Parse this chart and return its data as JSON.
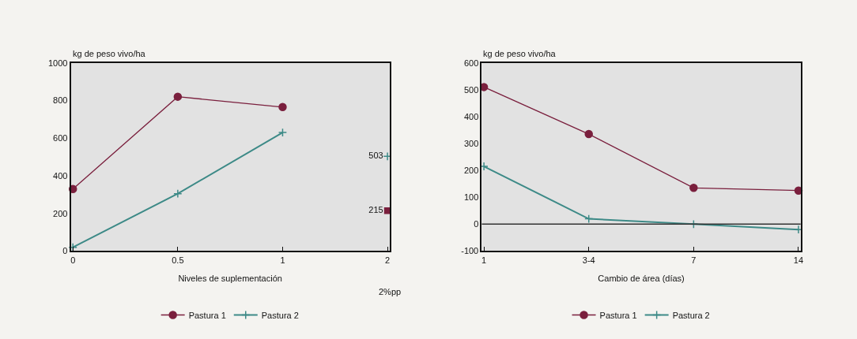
{
  "chart_data": [
    {
      "type": "line",
      "ylabel": "kg de peso vivo/ha",
      "xlabel": "Niveles de suplementación",
      "categories": [
        "0",
        "0.5",
        "1",
        "2"
      ],
      "ylim": [
        0,
        1000
      ],
      "yticks": [
        0,
        200,
        400,
        600,
        800,
        1000
      ],
      "grid": false,
      "legend": "bottom",
      "series": [
        {
          "name": "Pastura 1",
          "color": "#7a1f3d",
          "marker": "circle",
          "values": [
            330,
            820,
            765,
            null
          ]
        },
        {
          "name": "Pastura 2",
          "color": "#3d8a87",
          "marker": "cross",
          "values": [
            20,
            305,
            630,
            null
          ]
        },
        {
          "type": "scatter",
          "color": "#7a1f3d",
          "marker": "square",
          "values": [
            null,
            null,
            null,
            215
          ],
          "value_labels": [
            null,
            null,
            null,
            "215"
          ]
        },
        {
          "type": "scatter",
          "color": "#3d8a87",
          "marker": "cross",
          "values": [
            null,
            null,
            null,
            503
          ],
          "value_labels": [
            null,
            null,
            null,
            "503"
          ]
        }
      ],
      "annotations": [
        "2%pp"
      ]
    },
    {
      "type": "line",
      "ylabel": "kg de peso vivo/ha",
      "xlabel": "Cambio de área (días)",
      "categories": [
        "1",
        "3-4",
        "7",
        "14"
      ],
      "ylim": [
        -100,
        600
      ],
      "yticks": [
        -100,
        0,
        100,
        200,
        300,
        400,
        500,
        600
      ],
      "grid": false,
      "legend": "bottom",
      "series": [
        {
          "name": "Pastura 1",
          "color": "#7a1f3d",
          "marker": "circle",
          "values": [
            510,
            335,
            135,
            125
          ]
        },
        {
          "name": "Pastura 2",
          "color": "#3d8a87",
          "marker": "cross",
          "values": [
            215,
            20,
            0,
            -20
          ]
        }
      ],
      "ref_lines": [
        {
          "axis": "y",
          "value": 0,
          "color": "#333333"
        }
      ]
    }
  ]
}
